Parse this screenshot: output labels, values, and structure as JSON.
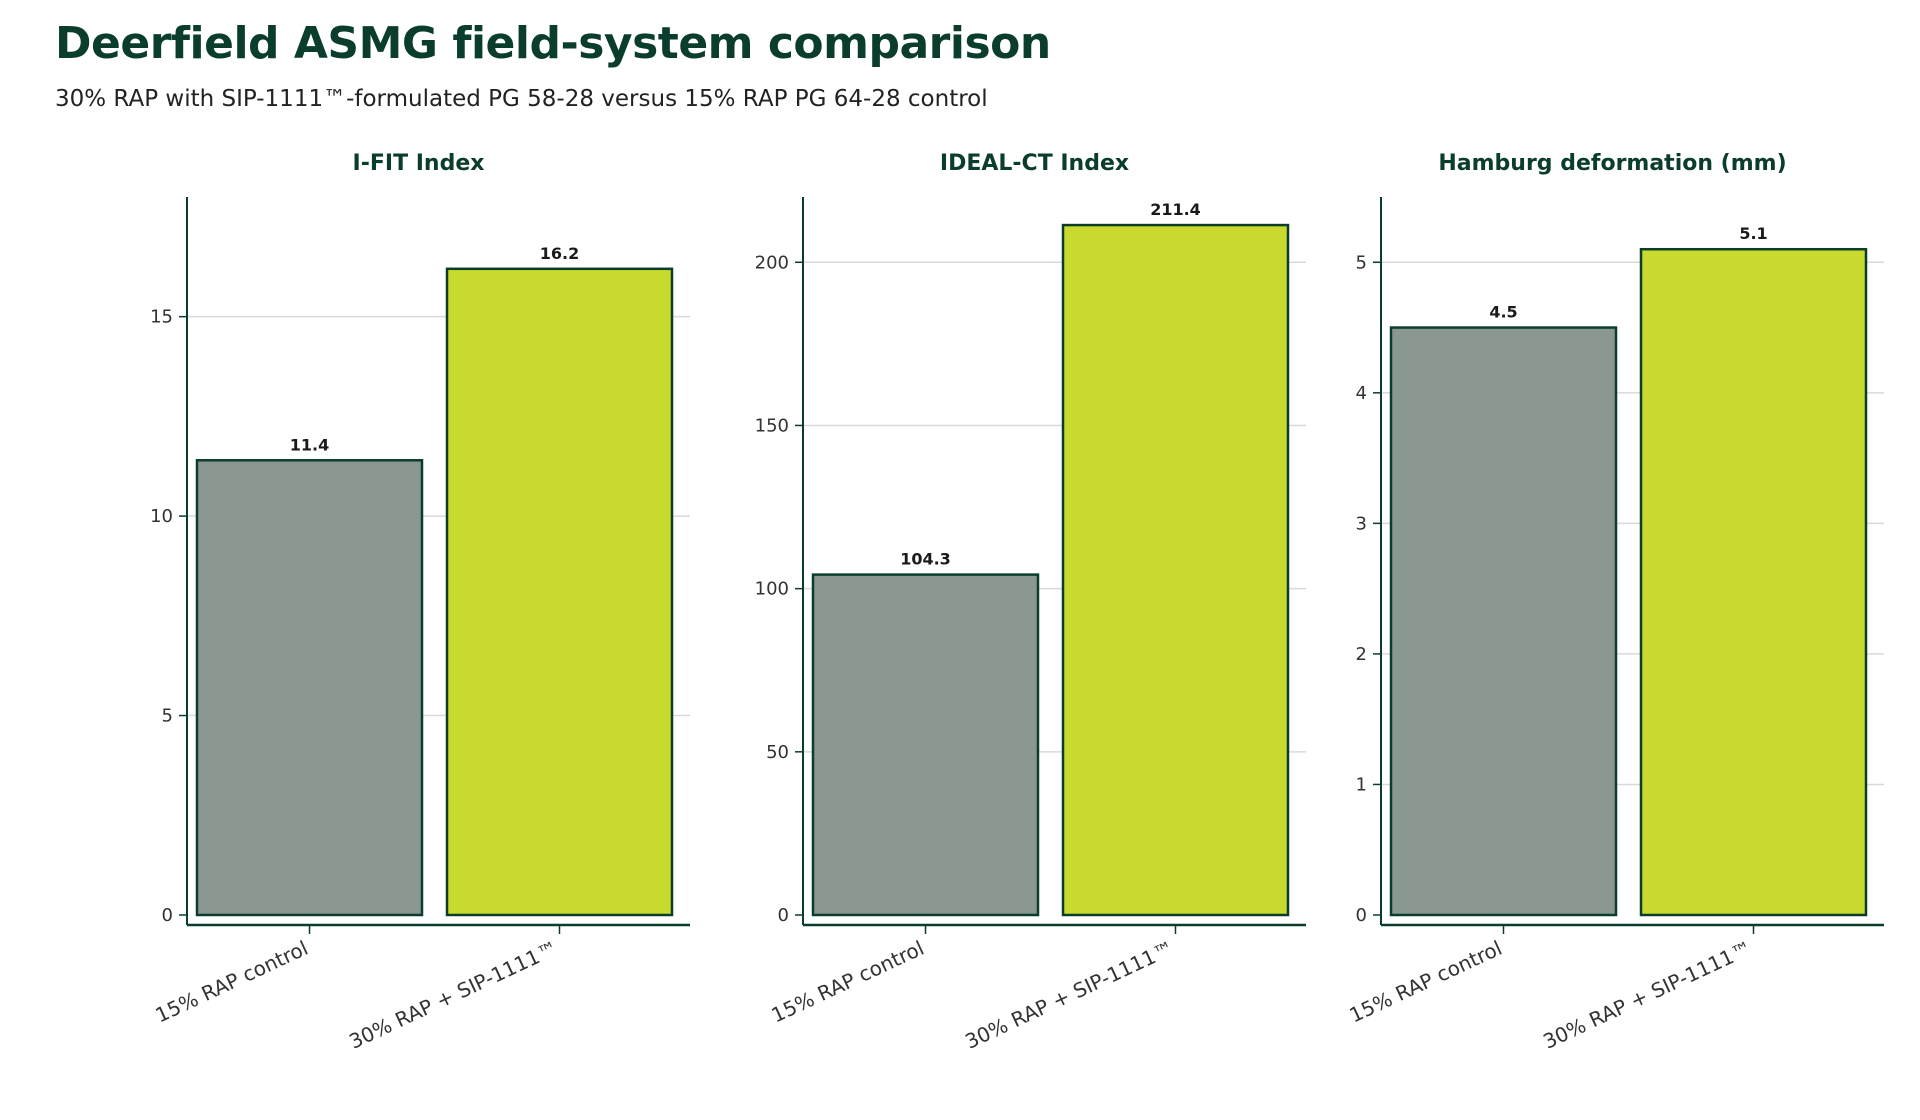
{
  "header": {
    "title": "Deerfield ASMG field-system comparison",
    "subtitle": "30% RAP with SIP-1111™-formulated PG 58-28 versus 15% RAP PG 64-28 control"
  },
  "colors": {
    "control": "#8a9891",
    "sip": "#c7da2d",
    "outline": "#0b3d2c",
    "grid": "#d9d9d9"
  },
  "chart_data": [
    {
      "type": "bar",
      "title": "I-FIT Index",
      "categories": [
        "15% RAP control",
        "30% RAP + SIP-1111™"
      ],
      "values": [
        11.4,
        16.2
      ],
      "value_labels": [
        "11.4",
        "16.2"
      ],
      "ylim": [
        0,
        18
      ],
      "yticks": [
        0,
        5,
        10,
        15
      ],
      "ytick_labels": [
        "0",
        "5",
        "10",
        "15"
      ],
      "grid": true
    },
    {
      "type": "bar",
      "title": "IDEAL-CT Index",
      "categories": [
        "15% RAP control",
        "30% RAP + SIP-1111™"
      ],
      "values": [
        104.3,
        211.4
      ],
      "value_labels": [
        "104.3",
        "211.4"
      ],
      "ylim": [
        0,
        220
      ],
      "yticks": [
        0,
        50,
        100,
        150,
        200
      ],
      "ytick_labels": [
        "0",
        "50",
        "100",
        "150",
        "200"
      ],
      "grid": true
    },
    {
      "type": "bar",
      "title": "Hamburg deformation (mm)",
      "categories": [
        "15% RAP control",
        "30% RAP + SIP-1111™"
      ],
      "values": [
        4.5,
        5.1
      ],
      "value_labels": [
        "4.5",
        "5.1"
      ],
      "ylim": [
        0,
        5.5
      ],
      "yticks": [
        0,
        1,
        2,
        3,
        4,
        5
      ],
      "ytick_labels": [
        "0",
        "1",
        "2",
        "3",
        "4",
        "5"
      ],
      "grid": true
    }
  ]
}
